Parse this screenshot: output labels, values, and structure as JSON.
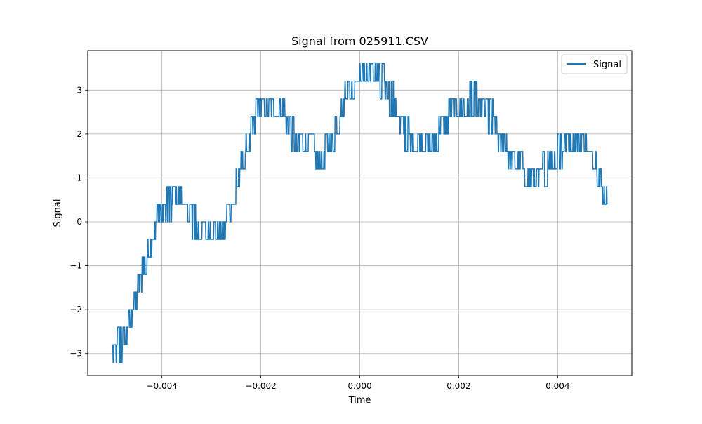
{
  "colors": {
    "series": "#1f77b4",
    "grid": "#b0b0b0",
    "axes": "#000000",
    "background": "#ffffff"
  },
  "chart_data": {
    "type": "line",
    "title": "Signal from 025911.CSV",
    "xlabel": "Time",
    "ylabel": "Signal",
    "xlim": [
      -0.0055,
      0.0055
    ],
    "ylim": [
      -3.5,
      3.9
    ],
    "xticks": [
      -0.004,
      -0.002,
      0.0,
      0.002,
      0.004
    ],
    "xtick_labels": [
      "−0.004",
      "−0.002",
      "0.000",
      "0.002",
      "0.004"
    ],
    "yticks": [
      -3,
      -2,
      -1,
      0,
      1,
      2,
      3
    ],
    "ytick_labels": [
      "−3",
      "−2",
      "−1",
      "0",
      "1",
      "2",
      "3"
    ],
    "grid": true,
    "legend": {
      "position": "top-right",
      "entries": [
        "Signal"
      ]
    },
    "series": [
      {
        "name": "Signal",
        "description_points": "envelope of a quantized noisy signal (levels in steps of 0.4)",
        "x": [
          -0.005,
          -0.0049,
          -0.0048,
          -0.0047,
          -0.0046,
          -0.0045,
          -0.0044,
          -0.0043,
          -0.0042,
          -0.0041,
          -0.004,
          -0.0039,
          -0.0038,
          -0.0037,
          -0.0036,
          -0.0035,
          -0.0034,
          -0.0033,
          -0.0032,
          -0.0031,
          -0.003,
          -0.0029,
          -0.0028,
          -0.0027,
          -0.0026,
          -0.0025,
          -0.0024,
          -0.0023,
          -0.0022,
          -0.0021,
          -0.002,
          -0.0019,
          -0.0018,
          -0.0017,
          -0.0016,
          -0.0015,
          -0.0014,
          -0.0013,
          -0.0012,
          -0.0011,
          -0.001,
          -0.0009,
          -0.0008,
          -0.0007,
          -0.0006,
          -0.0005,
          -0.0004,
          -0.0003,
          -0.0002,
          -0.0001,
          0.0,
          0.0001,
          0.0002,
          0.0003,
          0.0004,
          0.0005,
          0.0006,
          0.0007,
          0.0008,
          0.0009,
          0.001,
          0.0011,
          0.0012,
          0.0013,
          0.0014,
          0.0015,
          0.0016,
          0.0017,
          0.0018,
          0.0019,
          0.002,
          0.0021,
          0.0022,
          0.0023,
          0.0024,
          0.0025,
          0.0026,
          0.0027,
          0.0028,
          0.0029,
          0.003,
          0.0031,
          0.0032,
          0.0033,
          0.0034,
          0.0035,
          0.0036,
          0.0037,
          0.0038,
          0.0039,
          0.004,
          0.0041,
          0.0042,
          0.0043,
          0.0044,
          0.0045,
          0.0046,
          0.0047,
          0.0048,
          0.0049,
          0.005
        ],
        "low": [
          -3.2,
          -3.2,
          -2.8,
          -2.4,
          -2.0,
          -1.6,
          -1.2,
          -0.8,
          -0.4,
          0.0,
          0.0,
          0.0,
          0.4,
          0.4,
          0.4,
          0.0,
          -0.4,
          -0.4,
          -0.4,
          -0.4,
          -0.4,
          -0.4,
          -0.4,
          0.0,
          0.4,
          0.8,
          1.2,
          1.6,
          2.0,
          2.4,
          2.4,
          2.4,
          2.4,
          2.4,
          2.4,
          2.0,
          1.6,
          1.6,
          1.6,
          1.6,
          1.6,
          1.2,
          1.2,
          1.6,
          1.6,
          2.0,
          2.4,
          2.8,
          2.8,
          3.2,
          3.2,
          3.2,
          3.2,
          3.2,
          2.8,
          2.8,
          2.4,
          2.4,
          2.0,
          1.6,
          1.6,
          1.6,
          1.6,
          1.6,
          1.6,
          1.6,
          2.0,
          2.0,
          2.4,
          2.4,
          2.4,
          2.4,
          2.4,
          2.4,
          2.4,
          2.4,
          2.0,
          2.0,
          1.6,
          1.6,
          1.2,
          1.2,
          1.2,
          0.8,
          0.8,
          0.8,
          0.8,
          0.8,
          1.2,
          1.2,
          1.2,
          1.6,
          1.6,
          1.6,
          1.6,
          1.6,
          1.6,
          1.2,
          0.8,
          0.4,
          0.4
        ],
        "high": [
          -2.8,
          -2.4,
          -2.4,
          -2.0,
          -1.6,
          -1.2,
          -0.8,
          -0.4,
          0.0,
          0.4,
          0.4,
          0.8,
          0.8,
          0.8,
          0.4,
          0.4,
          0.4,
          0.0,
          0.0,
          0.0,
          0.0,
          0.0,
          0.0,
          0.4,
          0.4,
          1.2,
          1.6,
          2.0,
          2.4,
          2.8,
          2.8,
          2.8,
          2.8,
          2.8,
          2.8,
          2.4,
          2.4,
          2.0,
          2.0,
          2.0,
          2.0,
          1.6,
          1.6,
          2.0,
          2.0,
          2.4,
          2.8,
          3.2,
          3.2,
          3.2,
          3.6,
          3.6,
          3.6,
          3.6,
          3.6,
          3.2,
          3.2,
          2.8,
          2.4,
          2.4,
          2.0,
          2.0,
          2.0,
          2.0,
          2.0,
          2.0,
          2.4,
          2.4,
          2.8,
          2.8,
          2.8,
          2.8,
          3.2,
          3.2,
          2.8,
          2.8,
          2.8,
          2.4,
          2.0,
          2.0,
          1.6,
          1.6,
          1.6,
          1.2,
          1.2,
          1.2,
          1.2,
          1.6,
          1.6,
          1.6,
          2.0,
          2.0,
          2.0,
          2.0,
          2.0,
          2.0,
          1.6,
          1.6,
          1.2,
          0.8,
          0.4
        ]
      }
    ]
  }
}
